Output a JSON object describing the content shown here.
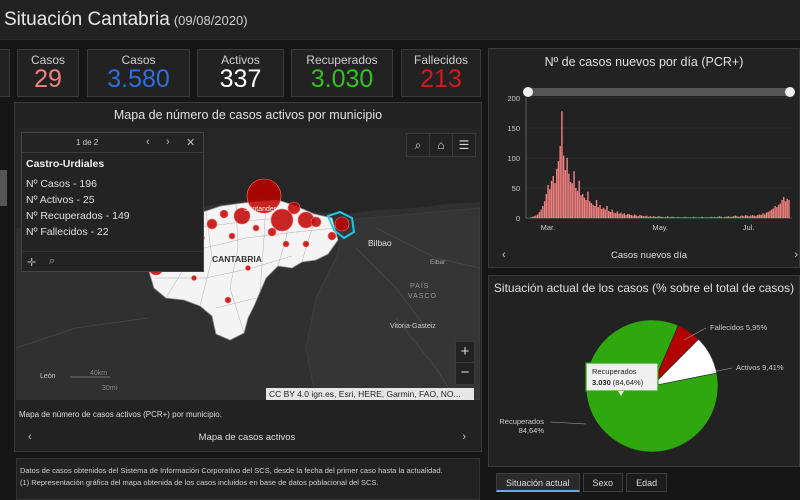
{
  "header": {
    "title": "Situación Cantabria",
    "date": "(09/08/2020)"
  },
  "kpis": [
    {
      "label": "Casos",
      "value": "29",
      "color": "#f08080"
    },
    {
      "label": "Casos",
      "value": "3.580",
      "color": "#2f6fde"
    },
    {
      "label": "Activos",
      "value": "337",
      "color": "#ffffff"
    },
    {
      "label": "Recuperados",
      "value": "3.030",
      "color": "#35c023"
    },
    {
      "label": "Fallecidos",
      "value": "213",
      "color": "#d11a1a"
    }
  ],
  "map_panel": {
    "title": "Mapa de número de casos activos por municipio",
    "caption": "Mapa de número de casos activos (PCR+) por municipio.",
    "nav_label": "Mapa de casos activos",
    "attribution": "CC BY 4.0 ign.es, Esri, HERE, Garmin, FAO, NO...",
    "labels": {
      "santander": "Santander",
      "cantabria": "CANTABRIA",
      "bilbao": "Bilbao",
      "eibar": "Eibar",
      "pais": "PAÍS",
      "vasco": "VASCO",
      "vitoria": "Vitoria-Gasteiz",
      "leon": "León",
      "scale_km": "40km",
      "scale_mi": "30mi"
    },
    "popup": {
      "pager": "1 de 2",
      "name": "Castro-Urdiales",
      "lines": [
        "Nº Casos - 196",
        "Nº Activos - 25",
        "Nº Recuperados - 149",
        "Nº Fallecidos - 22"
      ]
    }
  },
  "notes": [
    "Datos de casos obtenidos del Sistema de Información Corporativo del SCS, desde la fecha del primer caso hasta la actualidad.",
    "(1) Representación gráfica del mapa obtenida de los casos incluidos en base de datos poblacional del SCS."
  ],
  "tabs": [
    {
      "label": "Situación actual",
      "active": true
    },
    {
      "label": "Sexo",
      "active": false
    },
    {
      "label": "Edad",
      "active": false
    }
  ],
  "chart_data": [
    {
      "type": "bar",
      "title": "Nº de casos nuevos por día (PCR+)",
      "nav_label": "Casos nuevos día",
      "x_ticks": [
        "Mar.",
        "May.",
        "Jul."
      ],
      "y_ticks": [
        0,
        50,
        100,
        150,
        200
      ],
      "ylim": [
        0,
        200
      ],
      "color": "#f08080",
      "values": [
        1,
        2,
        3,
        4,
        6,
        10,
        14,
        20,
        28,
        40,
        55,
        48,
        62,
        70,
        58,
        82,
        95,
        120,
        178,
        104,
        80,
        100,
        74,
        60,
        58,
        78,
        50,
        45,
        62,
        38,
        40,
        34,
        30,
        44,
        28,
        25,
        22,
        20,
        30,
        18,
        22,
        15,
        17,
        14,
        20,
        12,
        10,
        14,
        9,
        8,
        11,
        7,
        9,
        6,
        8,
        5,
        7,
        6,
        5,
        4,
        6,
        4,
        3,
        5,
        4,
        3,
        3,
        4,
        2,
        3,
        2,
        3,
        2,
        2,
        3,
        2,
        2,
        1,
        2,
        3,
        1,
        2,
        2,
        1,
        1,
        2,
        1,
        1,
        1,
        2,
        1,
        1,
        1,
        1,
        2,
        1,
        1,
        1,
        1,
        2,
        1,
        1,
        1,
        1,
        2,
        1,
        2,
        1,
        2,
        3,
        2,
        1,
        2,
        2,
        3,
        2,
        2,
        3,
        4,
        3,
        2,
        3,
        4,
        3,
        5,
        4,
        3,
        4,
        5,
        4,
        3,
        5,
        6,
        5,
        8,
        6,
        9,
        10,
        12,
        14,
        16,
        20,
        18,
        22,
        24,
        30,
        35,
        28,
        32,
        30
      ]
    },
    {
      "type": "pie",
      "title": "Situación actual de los casos (% sobre el total de casos)",
      "slices": [
        {
          "label": "Recuperados",
          "value": 84.64,
          "color": "#2fa80f",
          "outer_label": [
            "Recuperados",
            "84,64%"
          ]
        },
        {
          "label": "Fallecidos",
          "value": 5.95,
          "color": "#b30000",
          "outer_label": [
            "Fallecidos 5,95%"
          ]
        },
        {
          "label": "Activos",
          "value": 9.41,
          "color": "#ffffff",
          "outer_label": [
            "Activos 9,41%"
          ]
        }
      ],
      "tooltip": {
        "title": "Recuperados",
        "value": "3.030",
        "pct": "(84,64%)"
      }
    }
  ]
}
